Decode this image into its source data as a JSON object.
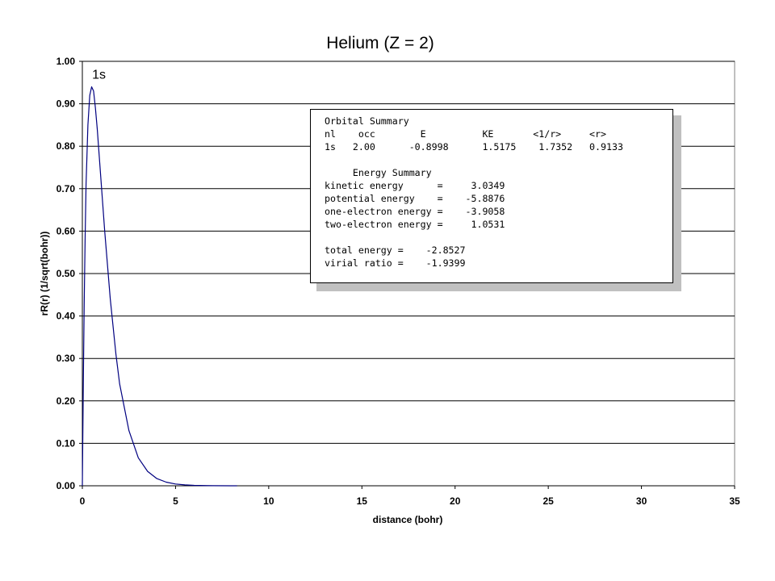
{
  "chart_data": {
    "type": "line",
    "title": "Helium (Z = 2)",
    "xlabel": "distance (bohr)",
    "ylabel": "rR(r) (1/sqrt(bohr))",
    "xlim": [
      0,
      35
    ],
    "ylim": [
      0,
      1
    ],
    "x_ticks": [
      "0",
      "5",
      "10",
      "15",
      "20",
      "25",
      "30",
      "35"
    ],
    "y_ticks": [
      "0.00",
      "0.10",
      "0.20",
      "0.30",
      "0.40",
      "0.50",
      "0.60",
      "0.70",
      "0.80",
      "0.90",
      "1.00"
    ],
    "grid": "horizontal",
    "series": [
      {
        "name": "1s",
        "color": "#000080",
        "x": [
          0,
          0.05,
          0.1,
          0.15,
          0.2,
          0.3,
          0.4,
          0.5,
          0.6,
          0.7,
          0.8,
          1.0,
          1.2,
          1.5,
          1.8,
          2.0,
          2.5,
          3.0,
          3.5,
          4.0,
          4.5,
          5.0,
          5.5,
          6.0,
          7.0,
          8.0,
          8.3
        ],
        "y": [
          0,
          0.24,
          0.43,
          0.59,
          0.71,
          0.85,
          0.92,
          0.94,
          0.93,
          0.89,
          0.84,
          0.72,
          0.6,
          0.44,
          0.31,
          0.24,
          0.13,
          0.066,
          0.034,
          0.017,
          0.0085,
          0.0042,
          0.002,
          0.001,
          0.0002,
          5e-05,
          2e-05
        ]
      }
    ]
  },
  "summary_lines": [
    "Orbital Summary",
    "nl    occ        E          KE       <1/r>     <r>",
    "1s   2.00      -0.8998      1.5175    1.7352   0.9133",
    "",
    "     Energy Summary",
    "kinetic energy      =     3.0349",
    "potential energy    =    -5.8876",
    "one-electron energy =    -3.9058",
    "two-electron energy =     1.0531",
    "",
    "total energy =    -2.8527",
    "virial ratio =    -1.9399"
  ]
}
